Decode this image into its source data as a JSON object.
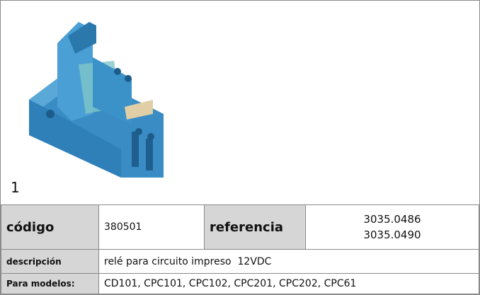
{
  "figure": {
    "label": "1"
  },
  "table": {
    "codigo_label": "código",
    "codigo": "380501",
    "referencia_label": "referencia",
    "referencias": [
      "3035.0486",
      "3035.0490"
    ],
    "descripcion_label": "descripción",
    "descripcion": "relé para circuito impreso  12VDC",
    "modelos_label": "Para modelos:",
    "modelos": "CD101, CPC101, CPC102, CPC201, CPC202, CPC61"
  }
}
